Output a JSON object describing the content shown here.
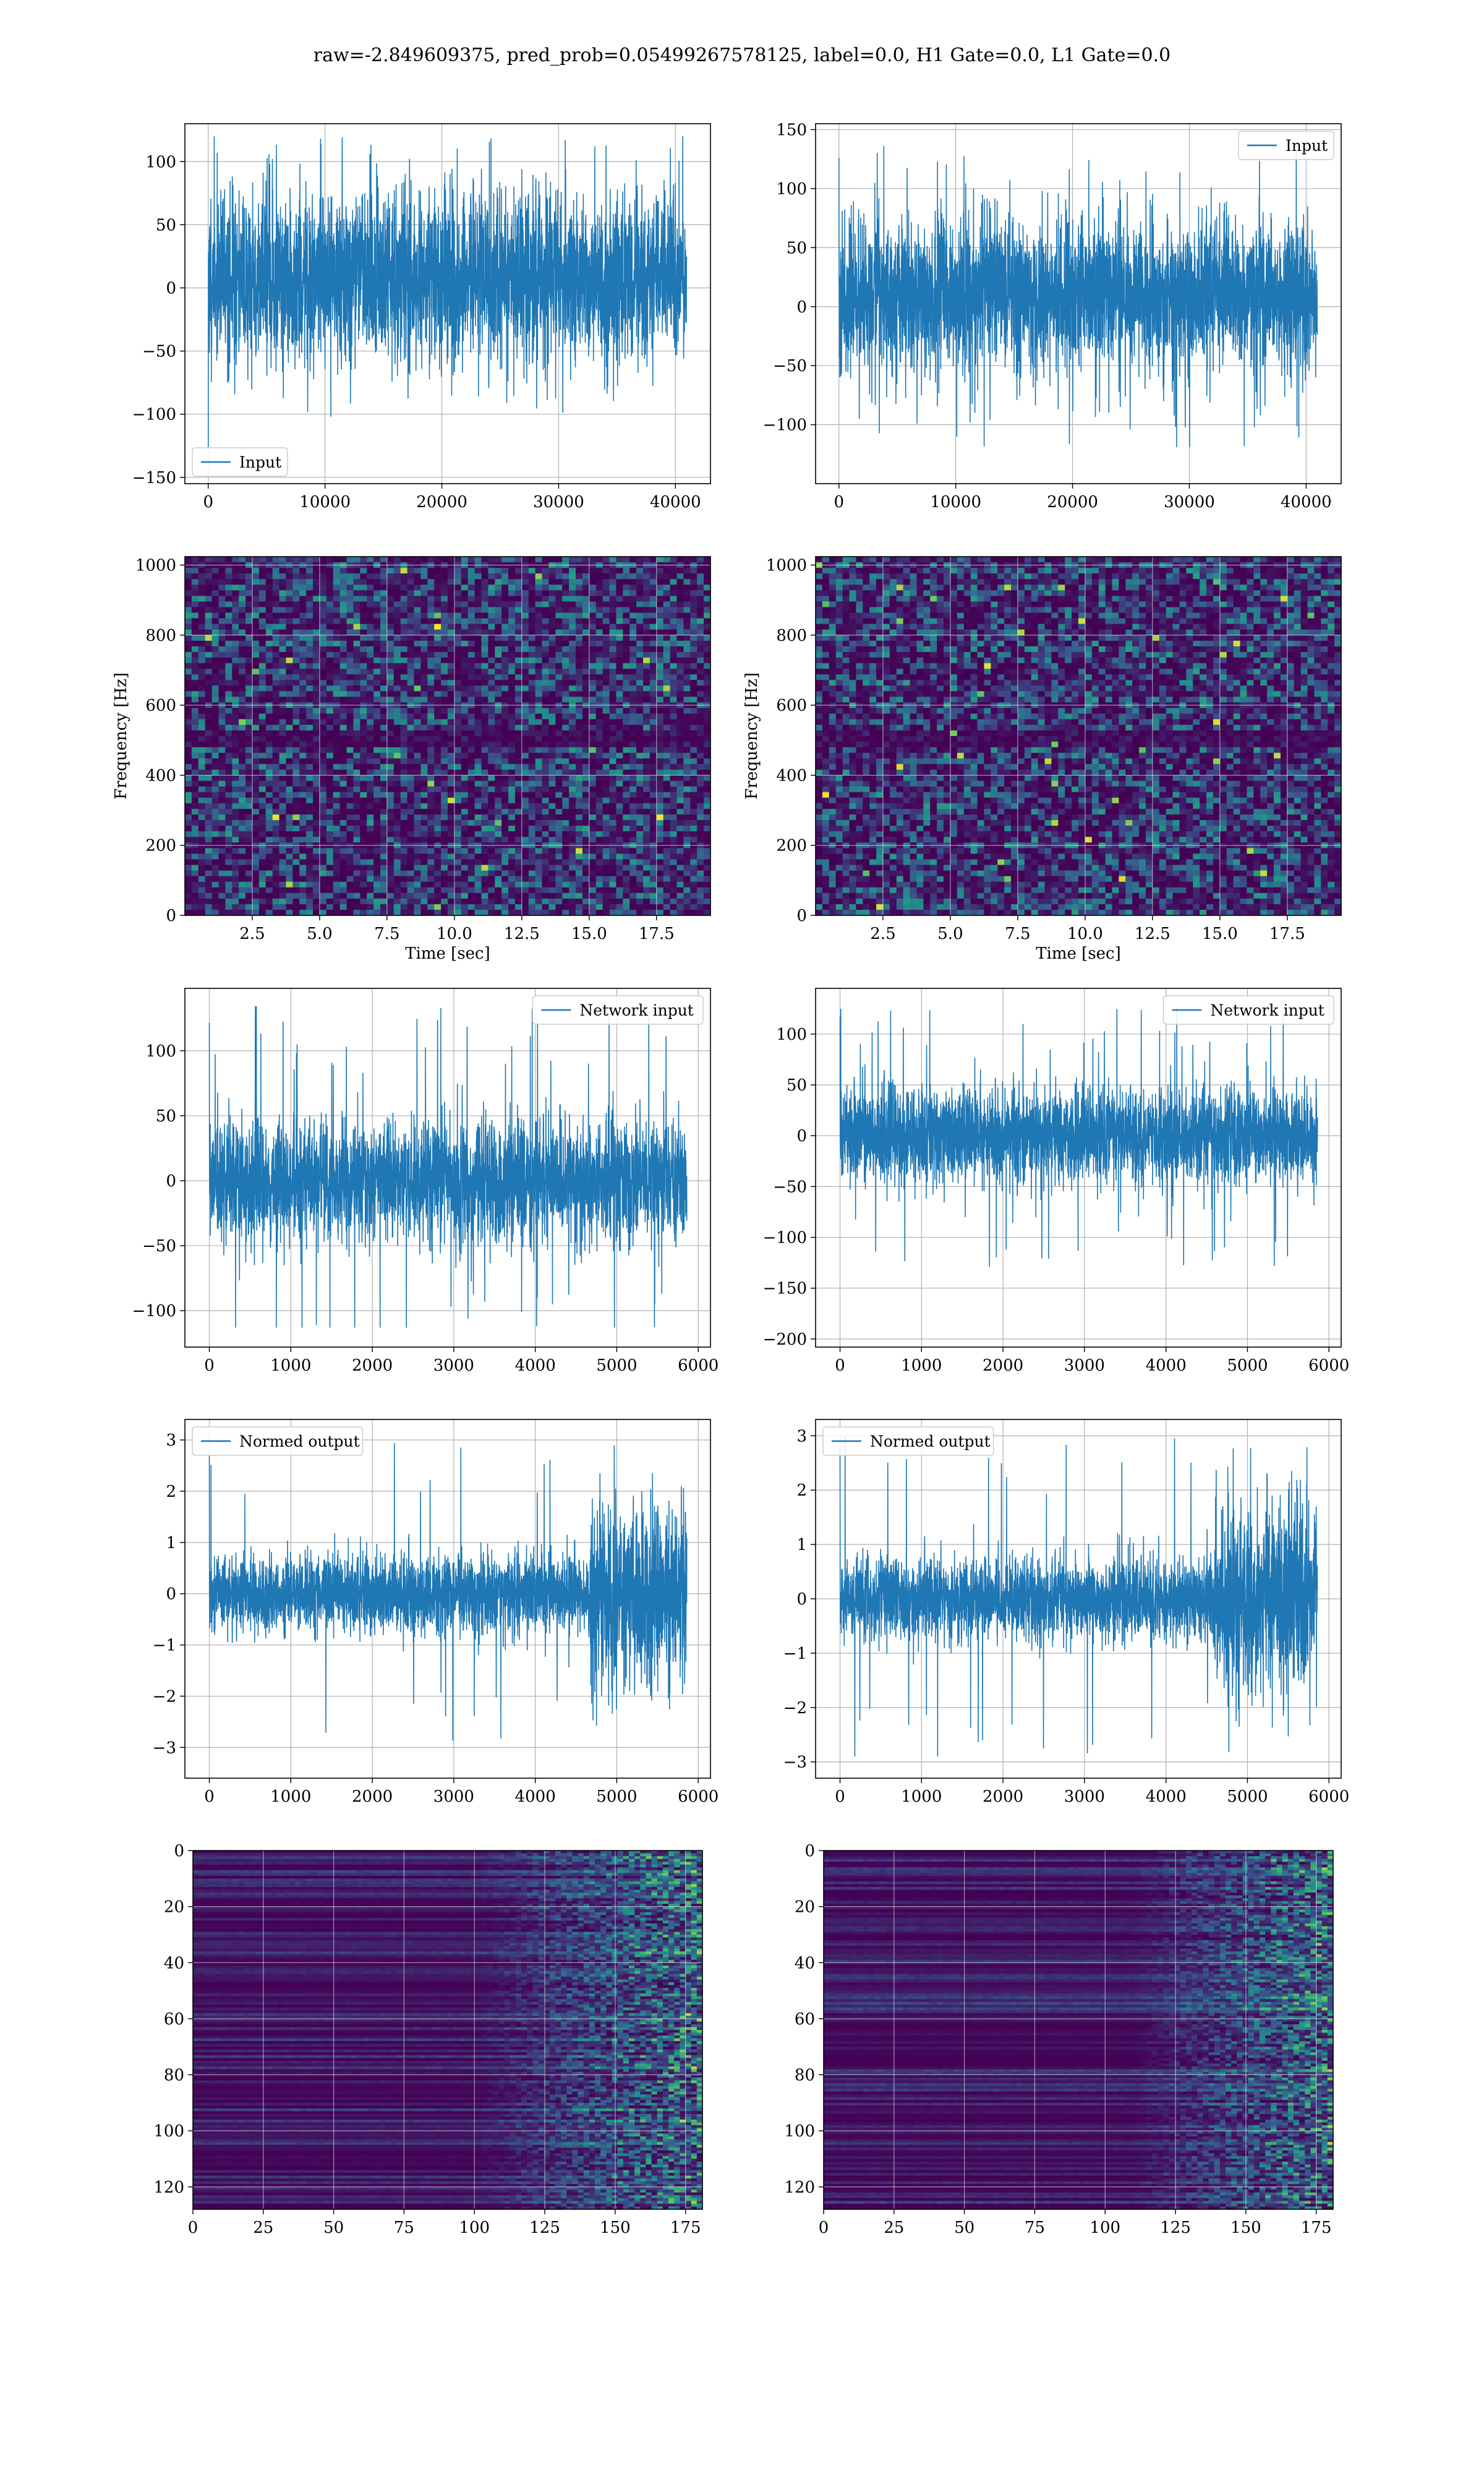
{
  "figure": {
    "suptitle": "raw=-2.849609375, pred_prob=0.05499267578125, label=0.0, H1 Gate=0.0, L1 Gate=0.0"
  },
  "colors": {
    "line": "#1f77b4",
    "grid": "#b0b0b0",
    "axes": "#000000",
    "background": "#ffffff",
    "viridis_low": "#440154",
    "viridis_mid": "#21918c",
    "viridis_high": "#fde725"
  },
  "chart_data": [
    {
      "id": "h1-input",
      "type": "line",
      "panel": "row1-left",
      "legend": [
        "Input"
      ],
      "legend_loc": "lower-left",
      "xlim": [
        -2000,
        43000
      ],
      "ylim": [
        -155,
        130
      ],
      "xticks": [
        0,
        10000,
        20000,
        30000,
        40000
      ],
      "yticks": [
        -150,
        -100,
        -50,
        0,
        50,
        100
      ],
      "series": [
        {
          "name": "Input",
          "x_range": [
            0,
            40960
          ],
          "envelope_typical": [
            -70,
            85
          ],
          "envelope_extreme": [
            -140,
            120
          ],
          "seed": 11
        }
      ]
    },
    {
      "id": "l1-input",
      "type": "line",
      "panel": "row1-right",
      "legend": [
        "Input"
      ],
      "legend_loc": "upper-right",
      "xlim": [
        -2000,
        43000
      ],
      "ylim": [
        -150,
        155
      ],
      "xticks": [
        0,
        10000,
        20000,
        30000,
        40000
      ],
      "yticks": [
        -100,
        -50,
        0,
        50,
        100,
        150
      ],
      "series": [
        {
          "name": "Input",
          "x_range": [
            0,
            40960
          ],
          "envelope_typical": [
            -65,
            85
          ],
          "envelope_extreme": [
            -135,
            140
          ],
          "seed": 23
        }
      ]
    },
    {
      "id": "h1-spectrogram",
      "type": "heatmap",
      "panel": "row2-left",
      "xlabel": "Time [sec]",
      "ylabel": "Frequency [Hz]",
      "xlim": [
        0,
        19.5
      ],
      "ylim": [
        0,
        1024
      ],
      "xticks": [
        2.5,
        5.0,
        7.5,
        10.0,
        12.5,
        15.0,
        17.5
      ],
      "xticklabels": [
        "2.5",
        "5.0",
        "7.5",
        "10.0",
        "12.5",
        "15.0",
        "17.5"
      ],
      "yticks": [
        0,
        200,
        400,
        600,
        800,
        1000
      ],
      "colormap": "viridis",
      "dark_band_hz": 500,
      "seed": 5
    },
    {
      "id": "l1-spectrogram",
      "type": "heatmap",
      "panel": "row2-right",
      "xlabel": "Time [sec]",
      "ylabel": "Frequency [Hz]",
      "xlim": [
        0,
        19.5
      ],
      "ylim": [
        0,
        1024
      ],
      "xticks": [
        2.5,
        5.0,
        7.5,
        10.0,
        12.5,
        15.0,
        17.5
      ],
      "xticklabels": [
        "2.5",
        "5.0",
        "7.5",
        "10.0",
        "12.5",
        "15.0",
        "17.5"
      ],
      "yticks": [
        0,
        200,
        400,
        600,
        800,
        1000
      ],
      "colormap": "viridis",
      "dark_band_hz": 500,
      "seed": 9
    },
    {
      "id": "h1-network-input",
      "type": "line",
      "panel": "row3-left",
      "legend": [
        "Network input"
      ],
      "legend_loc": "upper-right",
      "xlim": [
        -300,
        6150
      ],
      "ylim": [
        -128,
        148
      ],
      "xticks": [
        0,
        1000,
        2000,
        3000,
        4000,
        5000,
        6000
      ],
      "yticks": [
        -100,
        -50,
        0,
        50,
        100
      ],
      "series": [
        {
          "name": "Network input",
          "x_range": [
            0,
            5860
          ],
          "envelope_typical": [
            -55,
            55
          ],
          "envelope_extreme": [
            -113,
            135
          ],
          "seed": 31
        }
      ]
    },
    {
      "id": "l1-network-input",
      "type": "line",
      "panel": "row3-right",
      "legend": [
        "Network input"
      ],
      "legend_loc": "upper-right",
      "xlim": [
        -300,
        6150
      ],
      "ylim": [
        -208,
        145
      ],
      "xticks": [
        0,
        1000,
        2000,
        3000,
        4000,
        5000,
        6000
      ],
      "yticks": [
        -200,
        -150,
        -100,
        -50,
        0,
        50,
        100
      ],
      "series": [
        {
          "name": "Network input",
          "x_range": [
            0,
            5860
          ],
          "envelope_typical": [
            -55,
            55
          ],
          "envelope_extreme": [
            -190,
            130
          ],
          "seed": 47
        }
      ]
    },
    {
      "id": "h1-normed-output",
      "type": "line",
      "panel": "row4-left",
      "legend": [
        "Normed output"
      ],
      "legend_loc": "upper-left",
      "xlim": [
        -300,
        6150
      ],
      "ylim": [
        -3.6,
        3.4
      ],
      "xticks": [
        0,
        1000,
        2000,
        3000,
        4000,
        5000,
        6000
      ],
      "yticks": [
        -3,
        -2,
        -1,
        0,
        1,
        2,
        3
      ],
      "series": [
        {
          "name": "Normed output",
          "x_range": [
            0,
            5860
          ],
          "envelope_typical": [
            -0.9,
            0.9
          ],
          "envelope_extreme": [
            -3.2,
            3.0
          ],
          "burst_start": 4650,
          "seed": 53
        }
      ]
    },
    {
      "id": "l1-normed-output",
      "type": "line",
      "panel": "row4-right",
      "legend": [
        "Normed output"
      ],
      "legend_loc": "upper-left",
      "xlim": [
        -300,
        6150
      ],
      "ylim": [
        -3.3,
        3.3
      ],
      "xticks": [
        0,
        1000,
        2000,
        3000,
        4000,
        5000,
        6000
      ],
      "yticks": [
        -3,
        -2,
        -1,
        0,
        1,
        2,
        3
      ],
      "series": [
        {
          "name": "Normed output",
          "x_range": [
            0,
            5860
          ],
          "envelope_typical": [
            -0.9,
            0.9
          ],
          "envelope_extreme": [
            -2.9,
            3.1
          ],
          "burst_start": 4600,
          "seed": 61
        }
      ]
    },
    {
      "id": "h1-feature-map",
      "type": "heatmap",
      "panel": "row5-left",
      "xlim": [
        0,
        181
      ],
      "ylim": [
        128,
        0
      ],
      "xticks": [
        0,
        25,
        50,
        75,
        100,
        125,
        150,
        175
      ],
      "yticks": [
        0,
        20,
        40,
        60,
        80,
        100,
        120
      ],
      "colormap": "viridis",
      "activity_start_col": 100,
      "seed": 71
    },
    {
      "id": "l1-feature-map",
      "type": "heatmap",
      "panel": "row5-right",
      "xlim": [
        0,
        181
      ],
      "ylim": [
        128,
        0
      ],
      "xticks": [
        0,
        25,
        50,
        75,
        100,
        125,
        150,
        175
      ],
      "yticks": [
        0,
        20,
        40,
        60,
        80,
        100,
        120
      ],
      "colormap": "viridis",
      "activity_start_col": 110,
      "seed": 83
    }
  ]
}
